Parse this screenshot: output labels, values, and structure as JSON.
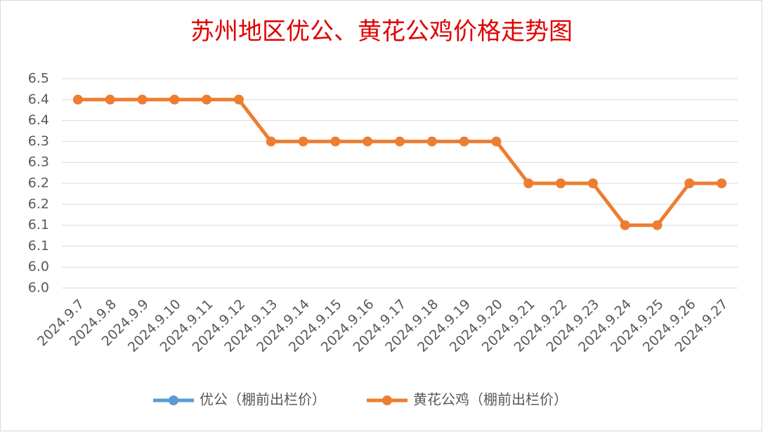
{
  "chart_data": {
    "type": "line",
    "title": "苏州地区优公、黄花公鸡价格走势图",
    "categories": [
      "2024.9.7",
      "2024.9.8",
      "2024.9.9",
      "2024.9.10",
      "2024.9.11",
      "2024.9.12",
      "2024.9.13",
      "2024.9.14",
      "2024.9.15",
      "2024.9.16",
      "2024.9.17",
      "2024.9.18",
      "2024.9.19",
      "2024.9.20",
      "2024.9.21",
      "2024.9.22",
      "2024.9.23",
      "2024.9.24",
      "2024.9.25",
      "2024.9.26",
      "2024.9.27"
    ],
    "series": [
      {
        "name": "优公（棚前出栏价）",
        "color": "#5b9bd5",
        "values": [
          null,
          null,
          null,
          null,
          null,
          null,
          null,
          null,
          null,
          null,
          null,
          null,
          null,
          null,
          null,
          null,
          null,
          null,
          null,
          null,
          null
        ]
      },
      {
        "name": "黄花公鸡（棚前出栏价）",
        "color": "#ed7d31",
        "values": [
          6.45,
          6.45,
          6.45,
          6.45,
          6.45,
          6.45,
          6.35,
          6.35,
          6.35,
          6.35,
          6.35,
          6.35,
          6.35,
          6.35,
          6.25,
          6.25,
          6.25,
          6.15,
          6.15,
          6.25,
          6.25
        ]
      }
    ],
    "ylim": [
      6.0,
      6.5
    ],
    "yticks": [
      {
        "value": 6.0,
        "label": "6.0"
      },
      {
        "value": 6.05,
        "label": "6.0"
      },
      {
        "value": 6.1,
        "label": "6.1"
      },
      {
        "value": 6.15,
        "label": "6.1"
      },
      {
        "value": 6.2,
        "label": "6.2"
      },
      {
        "value": 6.25,
        "label": "6.2"
      },
      {
        "value": 6.3,
        "label": "6.3"
      },
      {
        "value": 6.35,
        "label": "6.3"
      },
      {
        "value": 6.4,
        "label": "6.4"
      },
      {
        "value": 6.45,
        "label": "6.4"
      },
      {
        "value": 6.5,
        "label": "6.5"
      }
    ],
    "grid": true,
    "legend": "bottom"
  }
}
